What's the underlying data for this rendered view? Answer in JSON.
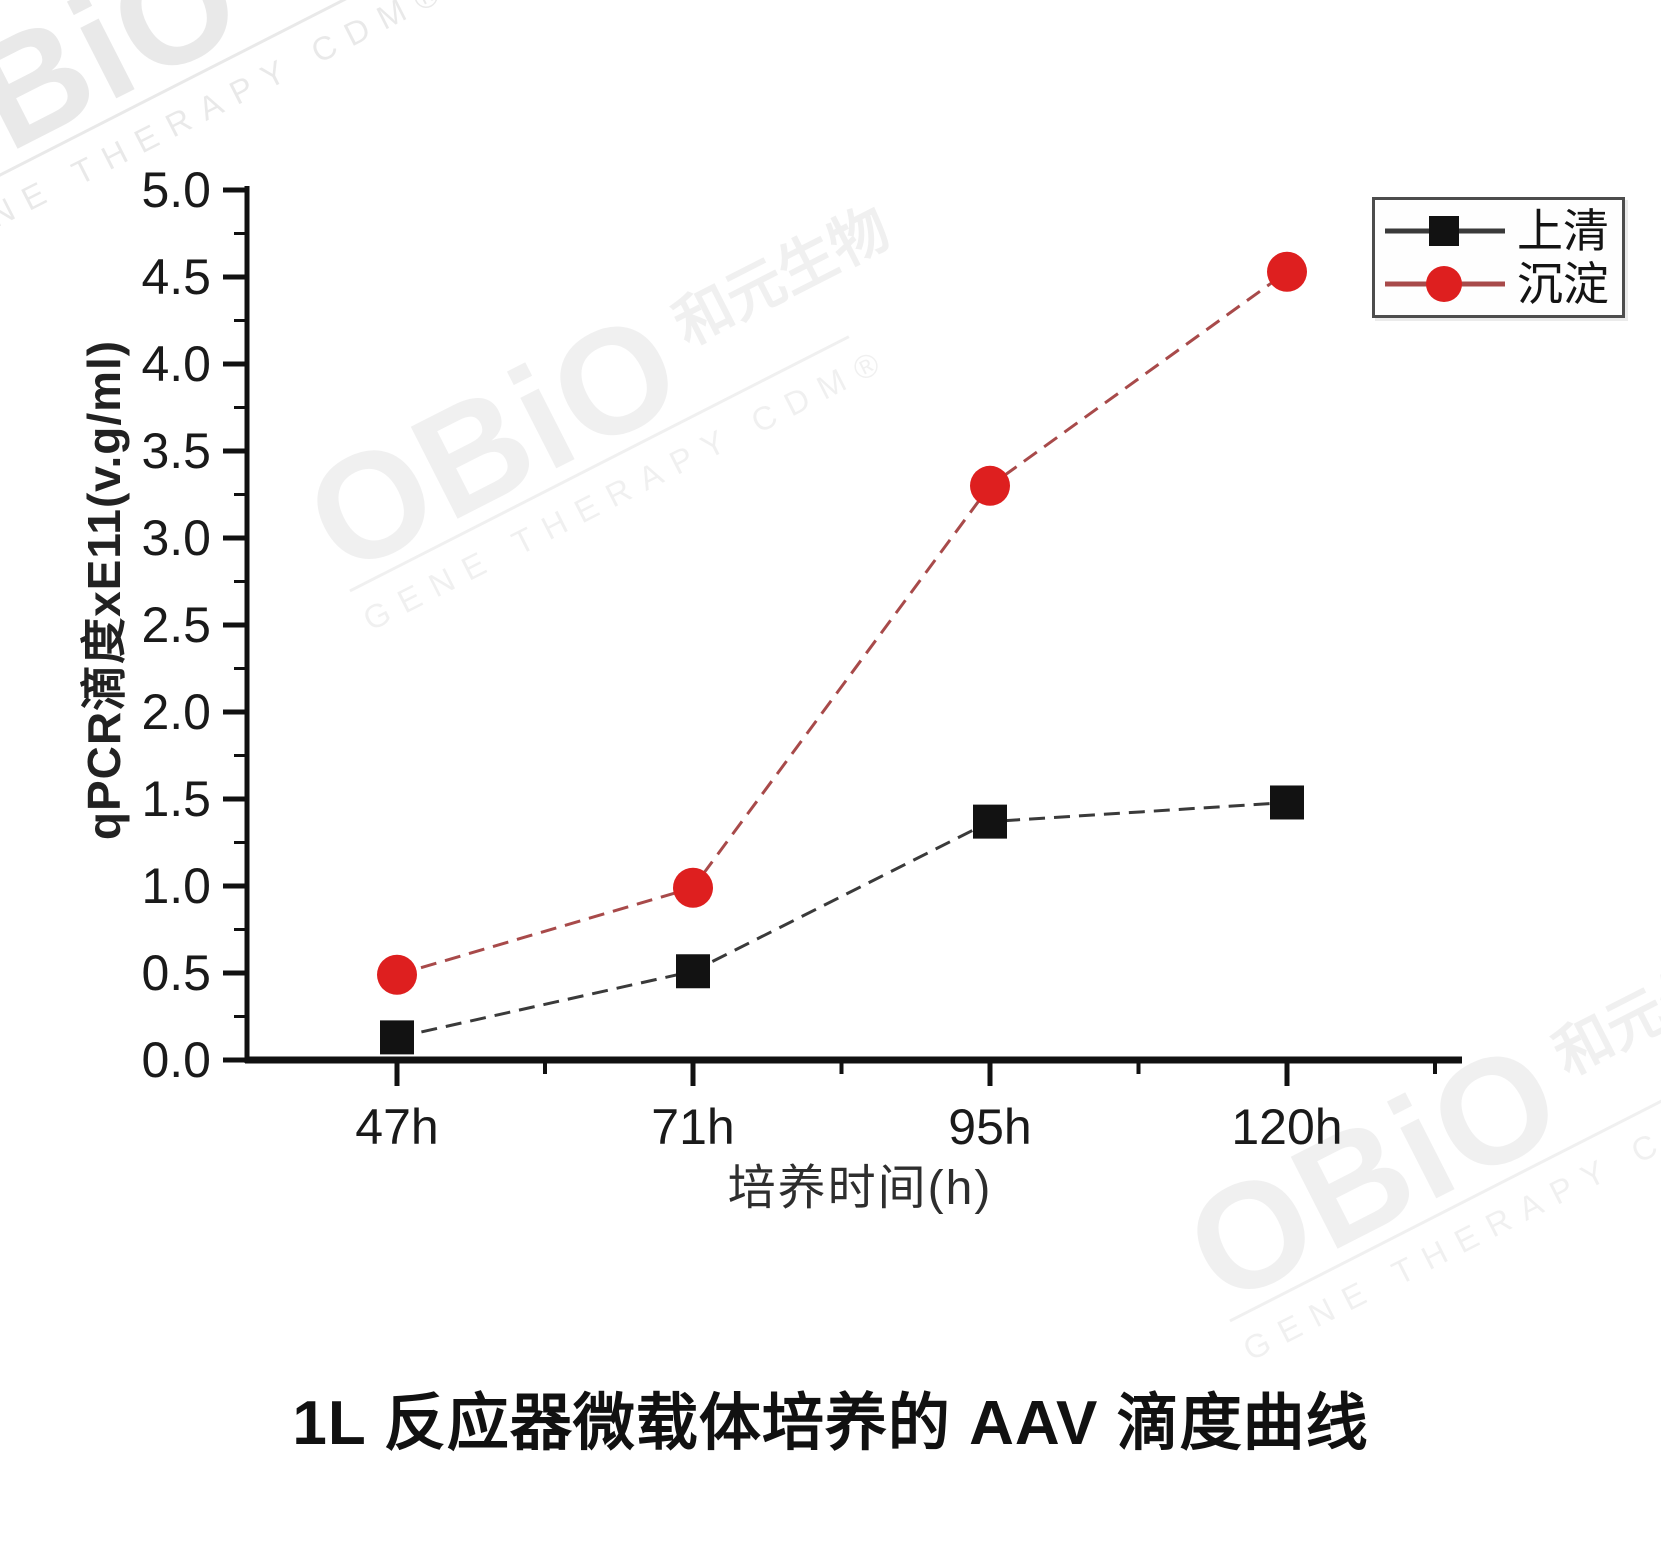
{
  "brand_watermark": {
    "brand": "OBiO",
    "brand_cn": "和元生物",
    "tagline": "GENE THERAPY CDM®"
  },
  "caption": "1L 反应器微载体培养的 AAV 滴度曲线",
  "chart_data": {
    "type": "line",
    "title": "",
    "categories": [
      "47h",
      "71h",
      "95h",
      "120h"
    ],
    "series": [
      {
        "name": "上清",
        "marker": "square",
        "marker_color": "#121212",
        "line_color": "#3a3a3a",
        "values": [
          0.13,
          0.51,
          1.37,
          1.48
        ]
      },
      {
        "name": "沉淀",
        "marker": "circle",
        "marker_color": "#de1f1f",
        "line_color": "#a84a4a",
        "values": [
          0.49,
          0.99,
          3.3,
          4.53
        ]
      }
    ],
    "xlabel": "培养时间(h)",
    "ylabel": "qPCR滴度xE11(v.g/ml)",
    "ylim": [
      0.0,
      5.0
    ],
    "ytick_step": 0.5,
    "y_tick_labels": [
      "0.0",
      "0.5",
      "1.0",
      "1.5",
      "2.0",
      "2.5",
      "3.0",
      "3.5",
      "4.0",
      "4.5",
      "5.0"
    ],
    "grid": false,
    "legend_position": "top-right"
  }
}
